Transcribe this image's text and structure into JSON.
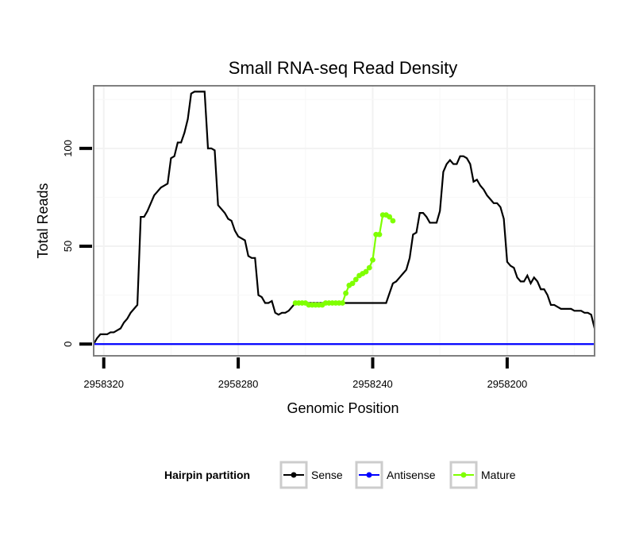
{
  "chart_data": {
    "type": "line",
    "title": "Small RNA-seq Read Density",
    "xlabel": "Genomic Position",
    "ylabel": "Total Reads",
    "xlim": [
      2958323,
      2958174
    ],
    "x_reversed": true,
    "ylim": [
      -6,
      132
    ],
    "xticks": [
      2958320,
      2958280,
      2958240,
      2958200
    ],
    "xtick_labels": [
      "2958320",
      "2958280",
      "2958240",
      "2958200"
    ],
    "yticks": [
      0,
      50,
      100
    ],
    "ytick_labels": [
      "0",
      "50",
      "100"
    ],
    "grid": true,
    "legend": {
      "title": "Hairpin partition",
      "position": "bottom",
      "entries": [
        {
          "label": "Sense",
          "color": "#000000"
        },
        {
          "label": "Antisense",
          "color": "#0000ff"
        },
        {
          "label": "Mature",
          "color": "#7fff00"
        }
      ]
    },
    "series": [
      {
        "name": "Sense",
        "color": "#000000",
        "points": [
          [
            2958323,
            0
          ],
          [
            2958322,
            3
          ],
          [
            2958321,
            5
          ],
          [
            2958320,
            5
          ],
          [
            2958319,
            5
          ],
          [
            2958318,
            6
          ],
          [
            2958317,
            6
          ],
          [
            2958316,
            7
          ],
          [
            2958315,
            8
          ],
          [
            2958314,
            11
          ],
          [
            2958313,
            13
          ],
          [
            2958312,
            16
          ],
          [
            2958311,
            18
          ],
          [
            2958310,
            20
          ],
          [
            2958309,
            65
          ],
          [
            2958308,
            65
          ],
          [
            2958307,
            68
          ],
          [
            2958306,
            72
          ],
          [
            2958305,
            76
          ],
          [
            2958304,
            78
          ],
          [
            2958303,
            80
          ],
          [
            2958302,
            81
          ],
          [
            2958301,
            82
          ],
          [
            2958300,
            95
          ],
          [
            2958299,
            96
          ],
          [
            2958298,
            103
          ],
          [
            2958297,
            103
          ],
          [
            2958296,
            108
          ],
          [
            2958295,
            115
          ],
          [
            2958294,
            128
          ],
          [
            2958293,
            129
          ],
          [
            2958292,
            129
          ],
          [
            2958291,
            129
          ],
          [
            2958290,
            129
          ],
          [
            2958289,
            100
          ],
          [
            2958288,
            100
          ],
          [
            2958287,
            99
          ],
          [
            2958286,
            71
          ],
          [
            2958285,
            69
          ],
          [
            2958284,
            67
          ],
          [
            2958283,
            64
          ],
          [
            2958282,
            63
          ],
          [
            2958281,
            58
          ],
          [
            2958280,
            55
          ],
          [
            2958279,
            54
          ],
          [
            2958278,
            53
          ],
          [
            2958277,
            45
          ],
          [
            2958276,
            44
          ],
          [
            2958275,
            44
          ],
          [
            2958274,
            25
          ],
          [
            2958273,
            24
          ],
          [
            2958272,
            21
          ],
          [
            2958271,
            21
          ],
          [
            2958270,
            22
          ],
          [
            2958269,
            16
          ],
          [
            2958268,
            15
          ],
          [
            2958267,
            16
          ],
          [
            2958266,
            16
          ],
          [
            2958265,
            17
          ],
          [
            2958264,
            19
          ],
          [
            2958263,
            21
          ],
          [
            2958236,
            21
          ],
          [
            2958235,
            26
          ],
          [
            2958234,
            31
          ],
          [
            2958233,
            32
          ],
          [
            2958232,
            34
          ],
          [
            2958231,
            36
          ],
          [
            2958230,
            38
          ],
          [
            2958229,
            44
          ],
          [
            2958228,
            56
          ],
          [
            2958227,
            57
          ],
          [
            2958226,
            67
          ],
          [
            2958225,
            67
          ],
          [
            2958224,
            65
          ],
          [
            2958223,
            62
          ],
          [
            2958222,
            62
          ],
          [
            2958221,
            62
          ],
          [
            2958220,
            68
          ],
          [
            2958219,
            88
          ],
          [
            2958218,
            92
          ],
          [
            2958217,
            94
          ],
          [
            2958216,
            92
          ],
          [
            2958215,
            92
          ],
          [
            2958214,
            96
          ],
          [
            2958213,
            96
          ],
          [
            2958212,
            95
          ],
          [
            2958211,
            92
          ],
          [
            2958210,
            83
          ],
          [
            2958209,
            84
          ],
          [
            2958208,
            81
          ],
          [
            2958207,
            79
          ],
          [
            2958206,
            76
          ],
          [
            2958205,
            74
          ],
          [
            2958204,
            72
          ],
          [
            2958203,
            72
          ],
          [
            2958202,
            70
          ],
          [
            2958201,
            64
          ],
          [
            2958200,
            42
          ],
          [
            2958199,
            40
          ],
          [
            2958198,
            39
          ],
          [
            2958197,
            34
          ],
          [
            2958196,
            32
          ],
          [
            2958195,
            32
          ],
          [
            2958194,
            35
          ],
          [
            2958193,
            31
          ],
          [
            2958192,
            34
          ],
          [
            2958191,
            32
          ],
          [
            2958190,
            28
          ],
          [
            2958189,
            28
          ],
          [
            2958188,
            25
          ],
          [
            2958187,
            20
          ],
          [
            2958186,
            20
          ],
          [
            2958185,
            19
          ],
          [
            2958184,
            18
          ],
          [
            2958183,
            18
          ],
          [
            2958182,
            18
          ],
          [
            2958181,
            18
          ],
          [
            2958180,
            17
          ],
          [
            2958179,
            17
          ],
          [
            2958178,
            17
          ],
          [
            2958177,
            16
          ],
          [
            2958176,
            16
          ],
          [
            2958175,
            15
          ],
          [
            2958174,
            8
          ]
        ]
      },
      {
        "name": "Antisense",
        "color": "#0000ff",
        "points": [
          [
            2958323,
            0
          ],
          [
            2958174,
            0
          ]
        ]
      },
      {
        "name": "Mature",
        "color": "#7fff00",
        "points": [
          [
            2958263,
            21
          ],
          [
            2958262,
            21
          ],
          [
            2958261,
            21
          ],
          [
            2958260,
            21
          ],
          [
            2958259,
            20
          ],
          [
            2958258,
            20
          ],
          [
            2958257,
            20
          ],
          [
            2958256,
            20
          ],
          [
            2958255,
            20
          ],
          [
            2958254,
            21
          ],
          [
            2958253,
            21
          ],
          [
            2958252,
            21
          ],
          [
            2958251,
            21
          ],
          [
            2958250,
            21
          ],
          [
            2958249,
            21
          ],
          [
            2958248,
            26
          ],
          [
            2958247,
            30
          ],
          [
            2958246,
            31
          ],
          [
            2958245,
            33
          ],
          [
            2958244,
            35
          ],
          [
            2958243,
            36
          ],
          [
            2958242,
            37
          ],
          [
            2958241,
            39
          ],
          [
            2958240,
            43
          ],
          [
            2958239,
            56
          ],
          [
            2958238,
            56
          ],
          [
            2958237,
            66
          ],
          [
            2958236,
            66
          ],
          [
            2958235,
            65
          ],
          [
            2958234,
            63
          ]
        ]
      }
    ]
  }
}
